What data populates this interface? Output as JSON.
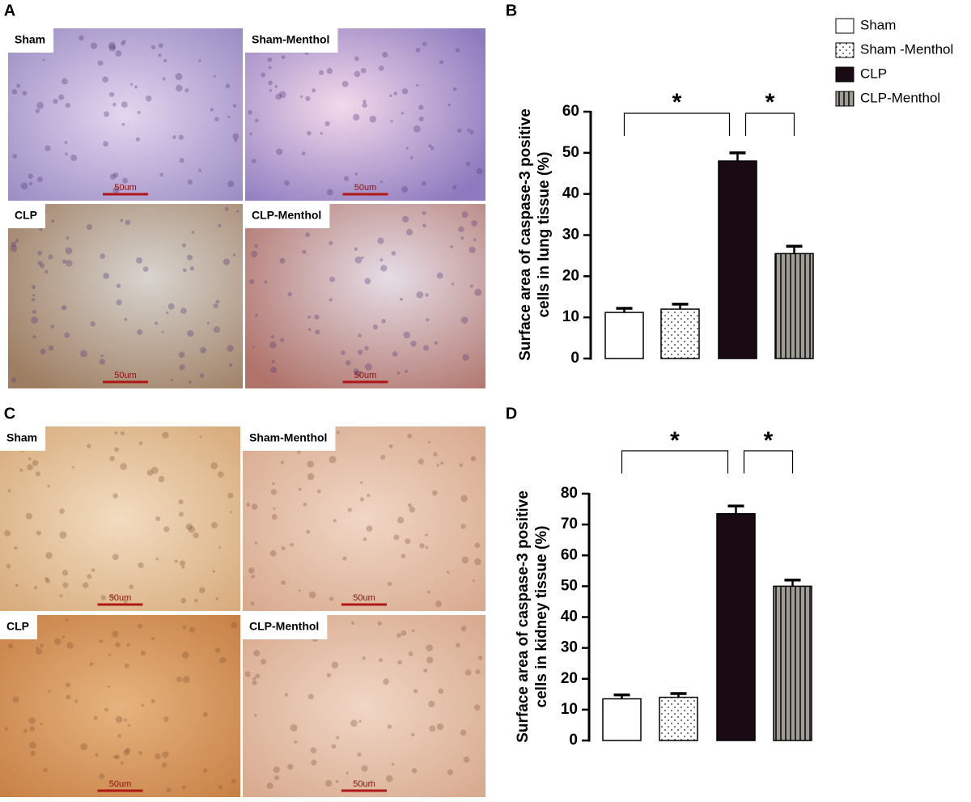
{
  "panels": [
    {
      "letter": "A",
      "images": [
        {
          "label": "Sham",
          "scale": "50um"
        },
        {
          "label": "Sham-Menthol",
          "scale": "50um"
        },
        {
          "label": "CLP",
          "scale": "50um"
        },
        {
          "label": "CLP-Menthol",
          "scale": "50um"
        }
      ]
    },
    {
      "letter": "C",
      "images": [
        {
          "label": "Sham",
          "scale": "50um"
        },
        {
          "label": "Sham-Menthol",
          "scale": "50um"
        },
        {
          "label": "CLP",
          "scale": "50um"
        },
        {
          "label": "CLP-Menthol",
          "scale": "50um"
        }
      ]
    }
  ],
  "chart_data": [
    {
      "type": "bar",
      "panel": "B",
      "ylabel": [
        "Surface area of caspase-3 positive",
        "cells in lung tissue (%)"
      ],
      "categories": [
        "Sham",
        "Sham -Menthol",
        "CLP",
        "CLP-Menthol"
      ],
      "values": [
        11.2,
        12,
        48,
        25.5
      ],
      "errors": [
        1,
        1.2,
        2,
        1.8
      ],
      "colors": [
        "#ffffff",
        "#ffffff",
        "#1a0a14",
        "#a09e94"
      ],
      "patterns": [
        "none",
        "dots",
        "none",
        "stripes"
      ],
      "ylim": [
        0,
        60
      ],
      "yticks": [
        0,
        10,
        20,
        30,
        40,
        50,
        60
      ],
      "annotations": [
        "*",
        "*"
      ]
    },
    {
      "type": "bar",
      "panel": "D",
      "ylabel": [
        "Surface area of caspase-3 positive",
        "cells in kidney tissue (%)"
      ],
      "values": [
        13.5,
        14,
        73.5,
        50
      ],
      "errors": [
        1.3,
        1.2,
        2.5,
        2
      ],
      "colors": [
        "#ffffff",
        "#ffffff",
        "#1a0a14",
        "#a09e94"
      ],
      "patterns": [
        "none",
        "dots",
        "none",
        "stripes"
      ],
      "ylim": [
        0,
        80
      ],
      "yticks": [
        0,
        10,
        20,
        30,
        40,
        50,
        60,
        70,
        80
      ],
      "annotations": [
        "*",
        "*"
      ]
    }
  ]
}
